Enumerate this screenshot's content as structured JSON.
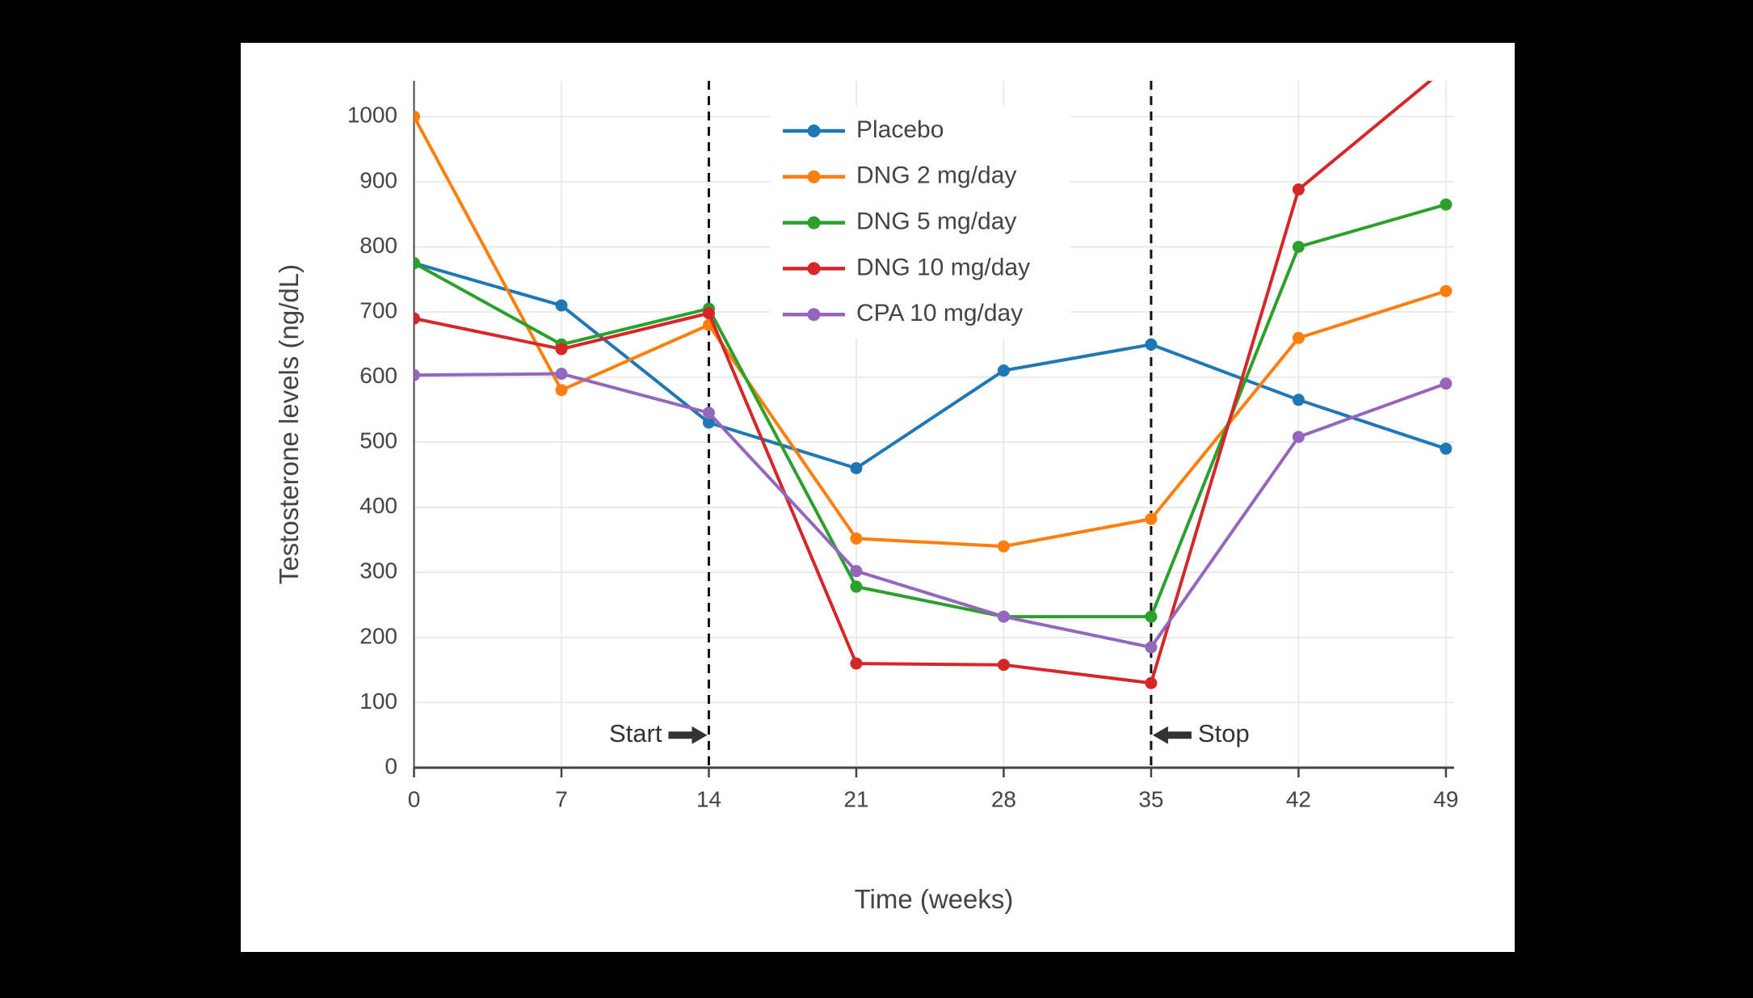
{
  "chart_data": {
    "type": "line",
    "title": "",
    "xlabel": "Time (weeks)",
    "ylabel": "Testosterone levels (ng/dL)",
    "x": [
      0,
      7,
      14,
      21,
      28,
      35,
      42,
      49
    ],
    "xticks": [
      0,
      7,
      14,
      21,
      28,
      35,
      42,
      49
    ],
    "yticks": [
      0,
      100,
      200,
      300,
      400,
      500,
      600,
      700,
      800,
      900,
      1000
    ],
    "xlim": [
      0,
      49.4
    ],
    "ylim": [
      0,
      1055
    ],
    "grid": true,
    "legend_position": "top-center-inside",
    "series": [
      {
        "name": "Placebo",
        "color": "#1f77b4",
        "values": [
          775,
          710,
          530,
          460,
          610,
          650,
          565,
          490
        ]
      },
      {
        "name": "DNG 2 mg/day",
        "color": "#ff7f0e",
        "values": [
          1000,
          580,
          680,
          352,
          340,
          382,
          660,
          732
        ]
      },
      {
        "name": "DNG 5 mg/day",
        "color": "#2ca02c",
        "values": [
          775,
          650,
          705,
          278,
          232,
          232,
          800,
          865
        ]
      },
      {
        "name": "DNG 10 mg/day",
        "color": "#d62728",
        "values": [
          690,
          643,
          698,
          160,
          158,
          130,
          888,
          1075
        ]
      },
      {
        "name": "CPA 10 mg/day",
        "color": "#9467bd",
        "values": [
          603,
          605,
          545,
          302,
          232,
          185,
          508,
          590
        ]
      }
    ],
    "vlines": [
      {
        "week": 14,
        "style": "dashed"
      },
      {
        "week": 35,
        "style": "dashed"
      }
    ],
    "annotations": [
      {
        "text": "Start",
        "arrow": "right",
        "week": 14,
        "value": 50
      },
      {
        "text": "Stop",
        "arrow": "left",
        "week": 35,
        "value": 50
      }
    ],
    "colors": {
      "grid": "#e5e5e5",
      "axis": "#444444",
      "tick_text": "#444444",
      "legend_text": "#444444",
      "annotation": "#333333",
      "vline": "#111111",
      "plot_background": "#ffffff",
      "page_background": "#000000"
    }
  }
}
